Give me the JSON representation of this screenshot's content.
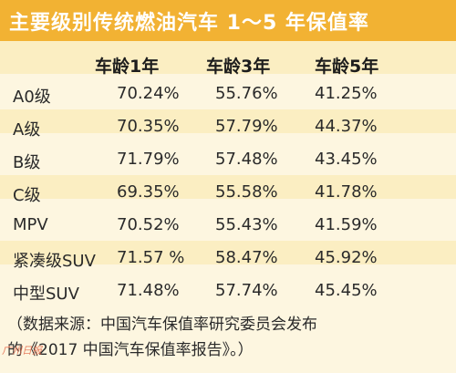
{
  "chart_data": {
    "type": "table",
    "title": "主要级别传统燃油汽车 1～5 年保值率",
    "columns": [
      "车龄1年",
      "车龄3年",
      "车龄5年"
    ],
    "rows": [
      {
        "label": "A0级",
        "values": [
          "70.24%",
          "55.76%",
          "41.25%"
        ]
      },
      {
        "label": "A级",
        "values": [
          "70.35%",
          "57.79%",
          "44.37%"
        ]
      },
      {
        "label": "B级",
        "values": [
          "71.79%",
          "57.48%",
          "43.45%"
        ]
      },
      {
        "label": "C级",
        "values": [
          "69.35%",
          "55.58%",
          "41.78%"
        ]
      },
      {
        "label": "MPV",
        "values": [
          "70.52%",
          "55.43%",
          "41.59%"
        ]
      },
      {
        "label": "紧凑级SUV",
        "values": [
          "71.57 %",
          "58.47%",
          "45.92%"
        ]
      },
      {
        "label": "中型SUV",
        "values": [
          "71.48%",
          "57.74%",
          "45.45%"
        ]
      }
    ],
    "source_line1": "（数据来源：中国汽车保值率研究委员会发布",
    "source_line2": "的《2017 中国汽车保值率报告》。）",
    "watermark": "广州日报"
  },
  "colors": {
    "title_bar": "#f2b233",
    "background": "#fdf6e0",
    "band": "#fbeec2",
    "watermark": "#e46a4a"
  }
}
